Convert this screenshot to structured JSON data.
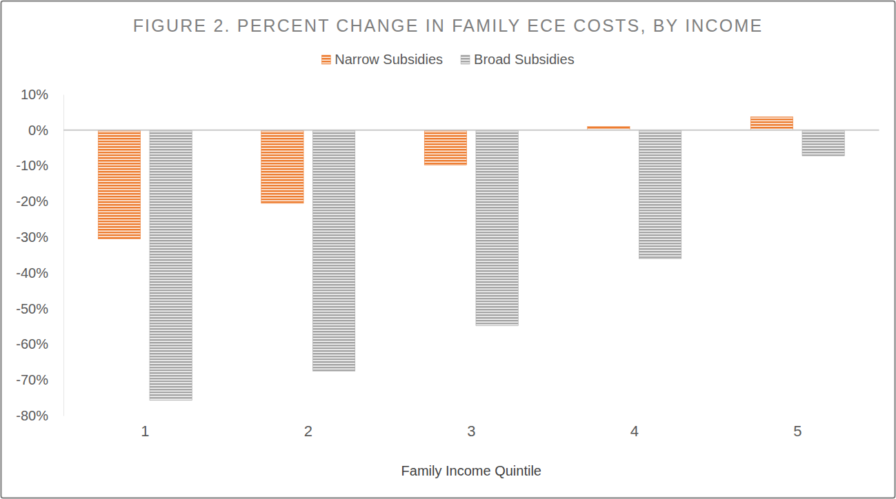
{
  "chart_data": {
    "type": "bar",
    "title": "FIGURE 2. PERCENT CHANGE IN FAMILY ECE COSTS, BY INCOME",
    "x_label": "Family Income Quintile",
    "categories": [
      "1",
      "2",
      "3",
      "4",
      "5"
    ],
    "series": [
      {
        "name": "Narrow Subsidies",
        "color": "#ED7D31",
        "values": [
          -30.5,
          -20.5,
          -9.8,
          1.0,
          3.7
        ]
      },
      {
        "name": "Broad Subsidies",
        "color": "#A5A5A5",
        "values": [
          -75.7,
          -67.5,
          -54.8,
          -36.0,
          -7.2
        ]
      }
    ],
    "ylim": [
      -80,
      10
    ],
    "yticks": [
      {
        "value": -80,
        "label": "-80%"
      },
      {
        "value": -70,
        "label": "-70%"
      },
      {
        "value": -60,
        "label": "-60%"
      },
      {
        "value": -50,
        "label": "-50%"
      },
      {
        "value": -40,
        "label": "-40%"
      },
      {
        "value": -30,
        "label": "-30%"
      },
      {
        "value": -20,
        "label": "-20%"
      },
      {
        "value": -10,
        "label": "-10%"
      },
      {
        "value": 0,
        "label": "0%"
      },
      {
        "value": 10,
        "label": "10%"
      }
    ],
    "grid": false,
    "legend": "top"
  }
}
